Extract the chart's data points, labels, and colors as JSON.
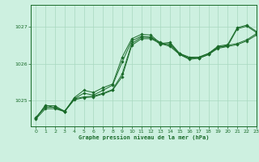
{
  "title": "Graphe pression niveau de la mer (hPa)",
  "background_color": "#cdf0e0",
  "grid_color": "#a8d8c0",
  "line_color": "#1a6b2a",
  "xlim": [
    -0.5,
    23
  ],
  "ylim": [
    1024.3,
    1027.6
  ],
  "yticks": [
    1025,
    1026,
    1027
  ],
  "xticks": [
    0,
    1,
    2,
    3,
    4,
    5,
    6,
    7,
    8,
    9,
    10,
    11,
    12,
    13,
    14,
    15,
    16,
    17,
    18,
    19,
    20,
    21,
    22,
    23
  ],
  "series1_x": [
    0,
    1,
    2,
    3,
    4,
    5,
    6,
    7,
    8,
    9,
    10,
    11,
    12,
    13,
    14,
    15,
    16,
    17,
    18,
    19,
    20,
    21,
    22,
    23
  ],
  "series1_y": [
    1024.55,
    1024.82,
    1024.82,
    1024.72,
    1025.05,
    1025.1,
    1025.12,
    1025.2,
    1025.3,
    1025.72,
    1026.55,
    1026.72,
    1026.72,
    1026.58,
    1026.5,
    1026.28,
    1026.18,
    1026.18,
    1026.28,
    1026.45,
    1026.5,
    1026.55,
    1026.65,
    1026.82
  ],
  "series2_x": [
    0,
    1,
    2,
    3,
    4,
    5,
    6,
    7,
    8,
    9,
    10,
    11,
    12,
    13,
    14,
    15,
    16,
    17,
    18,
    19,
    20,
    21,
    22,
    23
  ],
  "series2_y": [
    1024.5,
    1024.78,
    1024.78,
    1024.7,
    1025.02,
    1025.08,
    1025.1,
    1025.18,
    1025.28,
    1025.65,
    1026.5,
    1026.68,
    1026.68,
    1026.55,
    1026.47,
    1026.25,
    1026.15,
    1026.15,
    1026.25,
    1026.42,
    1026.47,
    1026.52,
    1026.62,
    1026.78
  ],
  "series3_x": [
    0,
    1,
    2,
    3,
    4,
    5,
    6,
    7,
    8,
    9,
    10,
    11,
    12,
    13,
    14,
    15,
    16,
    17,
    18,
    19,
    20,
    21,
    22,
    23
  ],
  "series3_y": [
    1024.52,
    1024.86,
    1024.86,
    1024.7,
    1025.08,
    1025.28,
    1025.22,
    1025.35,
    1025.45,
    1026.18,
    1026.68,
    1026.8,
    1026.78,
    1026.55,
    1026.58,
    1026.28,
    1026.15,
    1026.18,
    1026.28,
    1026.48,
    1026.52,
    1026.98,
    1027.05,
    1026.88
  ],
  "series4_x": [
    0,
    1,
    2,
    3,
    4,
    5,
    6,
    7,
    8,
    9,
    10,
    11,
    12,
    13,
    14,
    15,
    16,
    17,
    18,
    19,
    20,
    21,
    22,
    23
  ],
  "series4_y": [
    1024.52,
    1024.88,
    1024.8,
    1024.7,
    1025.05,
    1025.2,
    1025.15,
    1025.28,
    1025.42,
    1026.05,
    1026.62,
    1026.75,
    1026.72,
    1026.52,
    1026.55,
    1026.25,
    1026.12,
    1026.15,
    1026.25,
    1026.45,
    1026.48,
    1026.95,
    1027.02,
    1026.85
  ]
}
